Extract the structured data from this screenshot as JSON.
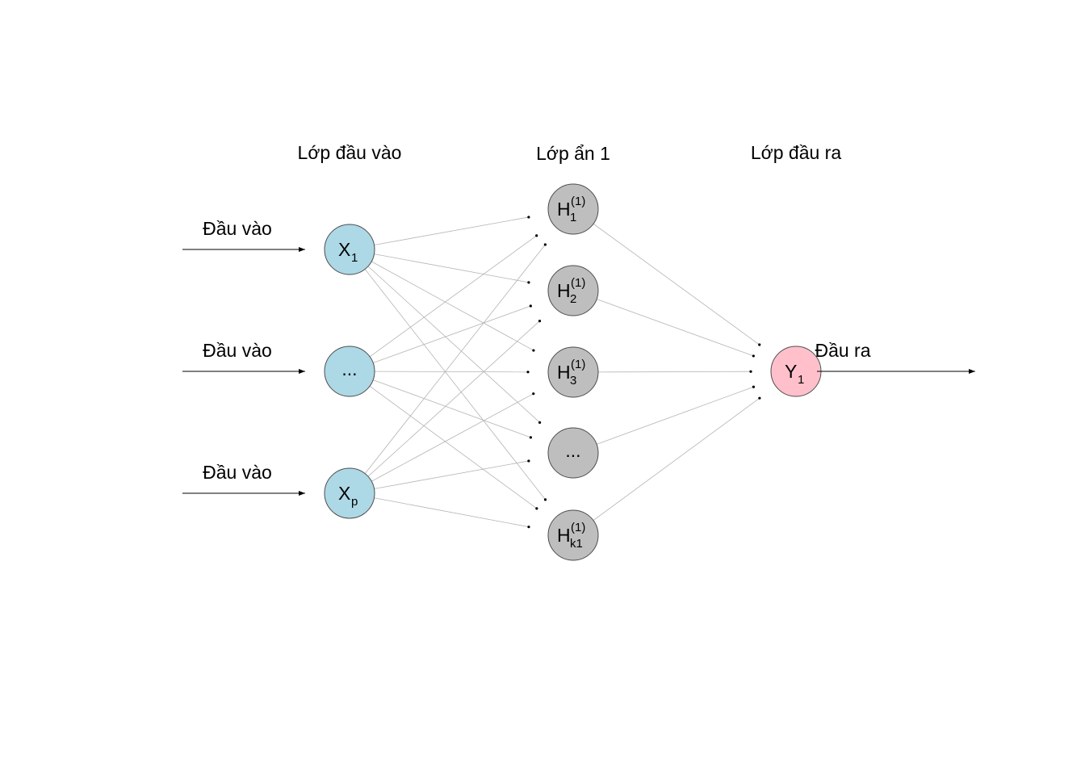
{
  "layers": {
    "input_title": "Lớp đầu vào",
    "hidden_title": "Lớp ẩn 1",
    "output_title": "Lớp đầu ra"
  },
  "inputs": {
    "labels": [
      "Đầu vào",
      "Đầu vào",
      "Đầu vào"
    ],
    "nodes": [
      {
        "main": "X",
        "sub": "1"
      },
      {
        "main": "..."
      },
      {
        "main": "X",
        "sub": "p"
      }
    ]
  },
  "hidden": {
    "nodes": [
      {
        "main": "H",
        "sub": "1",
        "sup": "(1)"
      },
      {
        "main": "H",
        "sub": "2",
        "sup": "(1)"
      },
      {
        "main": "H",
        "sub": "3",
        "sup": "(1)"
      },
      {
        "main": "..."
      },
      {
        "main": "H",
        "sub": "k1",
        "sup": "(1)"
      }
    ]
  },
  "output": {
    "label": "Đầu ra",
    "node": {
      "main": "Y",
      "sub": "1"
    }
  },
  "colors": {
    "input_fill": "#add8e6",
    "hidden_fill": "#bebebe",
    "output_fill": "#ffc0cb",
    "edge": "#b4b4b4",
    "node_stroke": "#4d4d4d"
  }
}
